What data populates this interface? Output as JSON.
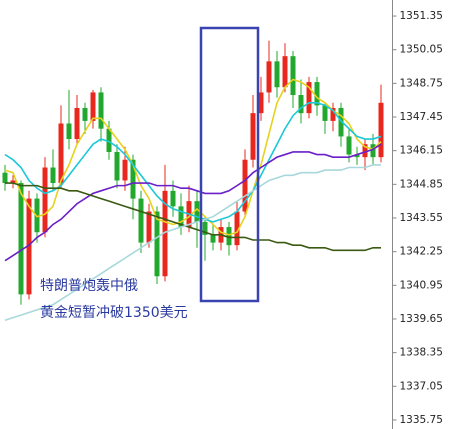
{
  "chart_data": {
    "type": "candlestick",
    "up_color": "#e8281e",
    "down_color": "#22a82e",
    "open": [
      1345.3,
      1344.9,
      1344.9,
      1340.6,
      1344.3,
      1343.0,
      1345.5,
      1344.9,
      1347.2,
      1346.6,
      1347.8,
      1347.3,
      1348.4,
      1347.0,
      1346.1,
      1345.0,
      1345.8,
      1344.3,
      1342.6,
      1343.8,
      1341.3,
      1344.6,
      1344.0,
      1343.2,
      1344.2,
      1343.4,
      1342.9,
      1342.6,
      1343.2,
      1342.5,
      1343.8,
      1345.8,
      1347.6,
      1348.4,
      1349.6,
      1348.6,
      1349.8,
      1348.3,
      1347.6,
      1348.8,
      1347.9,
      1347.3,
      1347.8,
      1346.7,
      1346.0,
      1345.9,
      1346.4,
      1345.9
    ],
    "high": [
      1345.6,
      1345.2,
      1345.0,
      1344.6,
      1344.5,
      1345.9,
      1346.2,
      1347.9,
      1348.5,
      1348.3,
      1348.0,
      1348.5,
      1348.6,
      1347.3,
      1346.4,
      1346.3,
      1346.0,
      1344.6,
      1344.1,
      1344.0,
      1345.6,
      1345.0,
      1344.5,
      1344.8,
      1344.6,
      1343.6,
      1343.3,
      1343.5,
      1343.4,
      1344.2,
      1346.2,
      1348.3,
      1349.0,
      1350.4,
      1350.0,
      1350.3,
      1350.0,
      1348.9,
      1349.0,
      1349.0,
      1348.0,
      1348.0,
      1348.0,
      1347.0,
      1346.3,
      1346.6,
      1346.8,
      1348.7
    ],
    "low": [
      1344.6,
      1344.7,
      1340.2,
      1340.4,
      1342.6,
      1342.8,
      1344.6,
      1344.7,
      1346.2,
      1346.4,
      1346.8,
      1347.0,
      1346.5,
      1345.8,
      1344.7,
      1344.6,
      1343.5,
      1342.2,
      1342.4,
      1341.0,
      1341.1,
      1343.6,
      1342.9,
      1343.0,
      1342.4,
      1341.9,
      1342.3,
      1342.3,
      1342.1,
      1342.3,
      1343.6,
      1345.5,
      1347.3,
      1348.0,
      1348.2,
      1348.4,
      1347.8,
      1347.2,
      1347.4,
      1347.5,
      1346.8,
      1346.9,
      1346.3,
      1345.7,
      1345.6,
      1345.4,
      1345.6,
      1345.7
    ],
    "close": [
      1344.9,
      1345.0,
      1340.6,
      1344.3,
      1343.0,
      1345.5,
      1344.9,
      1347.2,
      1346.6,
      1347.8,
      1347.3,
      1348.4,
      1347.0,
      1346.1,
      1345.0,
      1345.8,
      1344.3,
      1342.6,
      1343.8,
      1341.3,
      1344.6,
      1344.0,
      1343.2,
      1344.2,
      1343.4,
      1342.9,
      1342.6,
      1343.2,
      1342.5,
      1343.8,
      1345.8,
      1347.6,
      1348.4,
      1349.6,
      1348.6,
      1349.8,
      1348.3,
      1347.6,
      1348.8,
      1347.9,
      1347.3,
      1347.8,
      1346.7,
      1346.0,
      1345.9,
      1346.4,
      1345.9,
      1348.0
    ],
    "lines": [
      {
        "color": "#e6d21c",
        "values": [
          1345.4,
          1345.3,
          1344.5,
          1344.0,
          1343.6,
          1343.7,
          1344.0,
          1345.0,
          1345.6,
          1346.4,
          1346.9,
          1347.4,
          1347.4,
          1347.0,
          1346.6,
          1346.2,
          1345.6,
          1344.8,
          1344.3,
          1343.5,
          1343.4,
          1343.3,
          1343.4,
          1343.6,
          1343.9,
          1343.6,
          1343.3,
          1343.0,
          1342.9,
          1343.0,
          1343.6,
          1344.6,
          1345.6,
          1346.8,
          1348.0,
          1348.6,
          1348.9,
          1348.8,
          1348.6,
          1348.2,
          1348.0,
          1347.7,
          1347.5,
          1347.2,
          1346.6,
          1346.3,
          1346.2,
          1346.5
        ]
      },
      {
        "color": "#1cc8d8",
        "values": [
          1346.0,
          1345.8,
          1345.5,
          1345.0,
          1344.7,
          1344.5,
          1344.6,
          1344.8,
          1345.2,
          1345.6,
          1346.0,
          1346.4,
          1346.6,
          1346.5,
          1346.3,
          1346.0,
          1345.6,
          1345.2,
          1344.8,
          1344.4,
          1344.1,
          1343.9,
          1343.8,
          1343.7,
          1343.6,
          1343.5,
          1343.4,
          1343.5,
          1343.6,
          1343.8,
          1344.2,
          1344.6,
          1345.2,
          1345.8,
          1346.4,
          1347.0,
          1347.5,
          1347.8,
          1348.0,
          1348.0,
          1347.9,
          1347.7,
          1347.3,
          1347.0,
          1346.7,
          1346.6,
          1346.6,
          1346.7
        ]
      },
      {
        "color": "#6a1fc8",
        "values": [
          1341.9,
          1342.1,
          1342.3,
          1342.5,
          1342.8,
          1343.0,
          1343.3,
          1343.5,
          1343.8,
          1344.1,
          1344.3,
          1344.5,
          1344.6,
          1344.7,
          1344.8,
          1344.8,
          1344.9,
          1344.9,
          1344.9,
          1344.8,
          1344.8,
          1344.8,
          1344.7,
          1344.7,
          1344.6,
          1344.5,
          1344.5,
          1344.5,
          1344.6,
          1344.8,
          1345.0,
          1345.3,
          1345.5,
          1345.7,
          1345.9,
          1346.0,
          1346.1,
          1346.1,
          1346.1,
          1346.0,
          1346.0,
          1345.9,
          1345.9,
          1345.9,
          1346.0,
          1346.1,
          1346.2,
          1346.4
        ]
      },
      {
        "color": "#3a5a12",
        "values": [
          1344.9,
          1344.9,
          1344.8,
          1344.8,
          1344.8,
          1344.7,
          1344.7,
          1344.7,
          1344.6,
          1344.6,
          1344.5,
          1344.4,
          1344.3,
          1344.2,
          1344.1,
          1344.0,
          1343.9,
          1343.8,
          1343.7,
          1343.6,
          1343.5,
          1343.4,
          1343.3,
          1343.2,
          1343.1,
          1343.0,
          1342.9,
          1342.9,
          1342.8,
          1342.8,
          1342.8,
          1342.7,
          1342.7,
          1342.7,
          1342.6,
          1342.6,
          1342.5,
          1342.5,
          1342.4,
          1342.4,
          1342.4,
          1342.3,
          1342.3,
          1342.3,
          1342.3,
          1342.3,
          1342.4,
          1342.4
        ]
      },
      {
        "color": "#a8d8dc",
        "values": [
          1339.6,
          1339.7,
          1339.8,
          1339.9,
          1340.0,
          1340.1,
          1340.2,
          1340.4,
          1340.6,
          1340.8,
          1341.0,
          1341.2,
          1341.4,
          1341.6,
          1341.8,
          1342.0,
          1342.2,
          1342.4,
          1342.6,
          1342.8,
          1343.0,
          1343.1,
          1343.2,
          1343.3,
          1343.4,
          1343.5,
          1343.6,
          1343.8,
          1344.0,
          1344.2,
          1344.4,
          1344.6,
          1344.8,
          1345.0,
          1345.1,
          1345.2,
          1345.2,
          1345.3,
          1345.3,
          1345.3,
          1345.4,
          1345.4,
          1345.4,
          1345.5,
          1345.5,
          1345.5,
          1345.6,
          1345.6
        ]
      }
    ],
    "ylim": [
      1335.4,
      1351.97
    ],
    "yticks": [
      1351.35,
      1350.05,
      1348.75,
      1347.45,
      1346.15,
      1344.85,
      1343.55,
      1342.25,
      1340.95,
      1339.65,
      1338.35,
      1337.05,
      1335.75
    ],
    "annotations": [
      "特朗普炮轰中俄",
      "黄金短暂冲破1350美元"
    ]
  }
}
